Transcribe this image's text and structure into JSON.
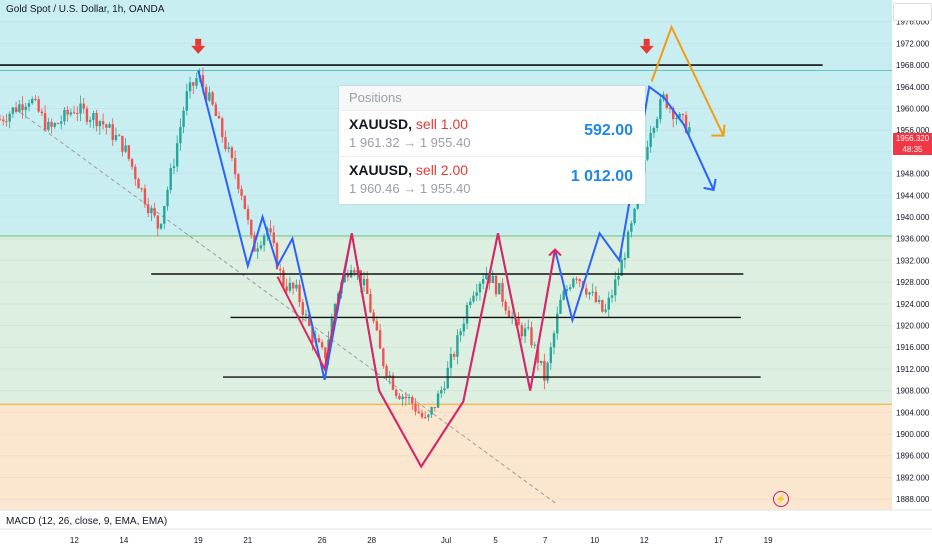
{
  "header": {
    "title": "Gold Spot / U.S. Dollar, 1h, OANDA",
    "indicator": "MACD (12, 26, close, 9, EMA, EMA)"
  },
  "positions": {
    "title": "Positions",
    "rows": [
      {
        "symbol": "XAUUSD,",
        "side": "sell 1.00",
        "route": "1 961.32 → 1 955.40",
        "pnl": "592.00"
      },
      {
        "symbol": "XAUUSD,",
        "side": "sell 2.00",
        "route": "1 960.46 → 1 955.40",
        "pnl": "1 012.00"
      }
    ]
  },
  "price_tag": {
    "price": "1956.320",
    "time": "48:35"
  },
  "colors": {
    "zone_top": "#c9eef2",
    "zone_mid": "#dcefe0",
    "zone_bottom": "#fbe7cf",
    "candle_up": "#26a69a",
    "candle_down": "#ef5350",
    "path_blue": "#2962ff",
    "path_red": "#e0245e",
    "path_orange": "#f39c12"
  },
  "chart_data": {
    "type": "candlestick",
    "title": "Gold Spot / U.S. Dollar, 1h, OANDA",
    "y_axis": {
      "ylim": [
        1886,
        1980
      ],
      "ticks": [
        "1888.000",
        "1892.000",
        "1896.000",
        "1900.000",
        "1904.000",
        "1908.000",
        "1912.000",
        "1916.000",
        "1920.000",
        "1924.000",
        "1928.000",
        "1932.000",
        "1936.000",
        "1940.000",
        "1944.000",
        "1948.000",
        "1952.000",
        "1956.000",
        "1960.000",
        "1964.000",
        "1968.000",
        "1972.000",
        "1976.000"
      ]
    },
    "x_axis": {
      "xlim": [
        0,
        36
      ],
      "ticks": [
        {
          "label": "12",
          "x": 3
        },
        {
          "label": "14",
          "x": 5
        },
        {
          "label": "19",
          "x": 8
        },
        {
          "label": "21",
          "x": 10
        },
        {
          "label": "26",
          "x": 13
        },
        {
          "label": "28",
          "x": 15
        },
        {
          "label": "Jul",
          "x": 18
        },
        {
          "label": "5",
          "x": 20
        },
        {
          "label": "7",
          "x": 22
        },
        {
          "label": "10",
          "x": 24
        },
        {
          "label": "12",
          "x": 26
        },
        {
          "label": "17",
          "x": 29
        },
        {
          "label": "19",
          "x": 31
        }
      ]
    },
    "close_path": [
      [
        0,
        1958
      ],
      [
        1.2,
        1962
      ],
      [
        2,
        1956
      ],
      [
        3,
        1960
      ],
      [
        4,
        1958
      ],
      [
        5,
        1953
      ],
      [
        5.8,
        1944
      ],
      [
        6.4,
        1938
      ],
      [
        7,
        1950
      ],
      [
        7.5,
        1962
      ],
      [
        8,
        1966
      ],
      [
        8.6,
        1960
      ],
      [
        9.2,
        1952
      ],
      [
        9.8,
        1944
      ],
      [
        10.2,
        1934
      ],
      [
        10.8,
        1938
      ],
      [
        11.4,
        1928
      ],
      [
        12,
        1926
      ],
      [
        12.6,
        1918
      ],
      [
        13.1,
        1914
      ],
      [
        13.6,
        1926
      ],
      [
        14.2,
        1932
      ],
      [
        14.8,
        1926
      ],
      [
        15.4,
        1914
      ],
      [
        16,
        1908
      ],
      [
        16.6,
        1906
      ],
      [
        17.2,
        1902
      ],
      [
        17.8,
        1908
      ],
      [
        18.4,
        1916
      ],
      [
        19,
        1926
      ],
      [
        19.6,
        1930
      ],
      [
        20.2,
        1926
      ],
      [
        20.8,
        1920
      ],
      [
        21.4,
        1918
      ],
      [
        22,
        1910
      ],
      [
        22.6,
        1924
      ],
      [
        23.2,
        1930
      ],
      [
        23.8,
        1926
      ],
      [
        24.4,
        1922
      ],
      [
        25,
        1930
      ],
      [
        25.6,
        1940
      ],
      [
        26.2,
        1956
      ],
      [
        26.8,
        1962
      ],
      [
        27.4,
        1958
      ],
      [
        27.9,
        1956
      ]
    ],
    "horizontal_levels": [
      1968,
      1929.5,
      1921.5,
      1910.5
    ],
    "zone_boundaries": [
      1967,
      1936.5,
      1905.5
    ],
    "projection_blue": [
      [
        8,
        1967
      ],
      [
        10,
        1931
      ],
      [
        10.6,
        1940
      ],
      [
        11.2,
        1931
      ],
      [
        11.8,
        1936
      ],
      [
        12.5,
        1922
      ],
      [
        13.1,
        1910
      ],
      [
        14.2,
        1937
      ],
      [
        15.3,
        1908
      ],
      [
        17,
        1894
      ],
      [
        18.7,
        1906
      ],
      [
        20.1,
        1937
      ],
      [
        21.4,
        1908
      ],
      [
        22.4,
        1934
      ],
      [
        23.1,
        1921
      ],
      [
        24.2,
        1937
      ],
      [
        25,
        1932
      ],
      [
        26.2,
        1964
      ],
      [
        26.8,
        1962
      ],
      [
        27.6,
        1957
      ],
      [
        28.8,
        1945
      ]
    ],
    "projection_red": [
      [
        11.2,
        1929
      ],
      [
        13.1,
        1912
      ],
      [
        14.2,
        1937
      ],
      [
        15.3,
        1908
      ],
      [
        17,
        1894
      ],
      [
        18.7,
        1906
      ],
      [
        20.1,
        1937
      ],
      [
        21.4,
        1908
      ],
      [
        22.4,
        1934
      ]
    ],
    "projection_orange": [
      [
        26.3,
        1965
      ],
      [
        27.1,
        1975
      ],
      [
        29.2,
        1955
      ]
    ],
    "markers": [
      {
        "x": 8,
        "y": 1971,
        "shape": "arrow-down"
      },
      {
        "x": 26.1,
        "y": 1971,
        "shape": "arrow-down"
      }
    ]
  }
}
